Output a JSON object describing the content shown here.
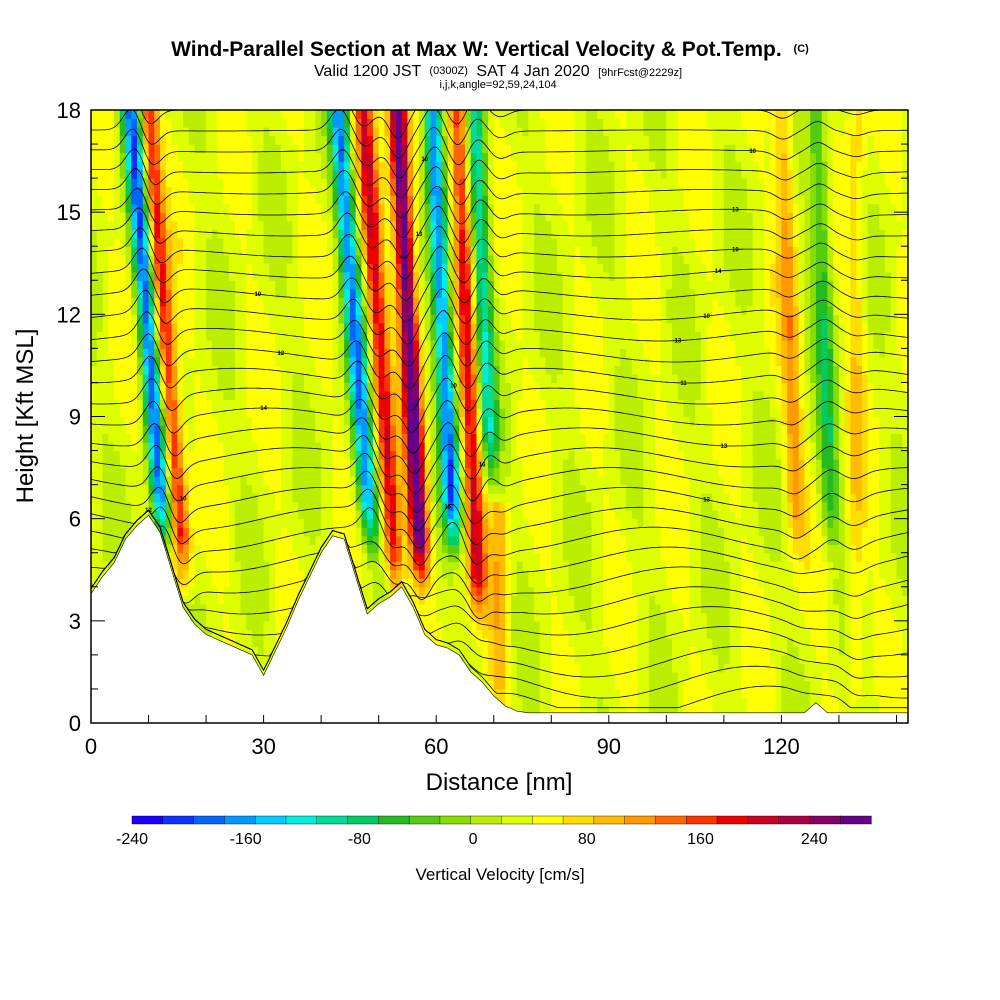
{
  "header": {
    "title_main": "Wind-Parallel Section at Max W: Vertical Velocity & Pot.Temp.",
    "title_mark": "(C)",
    "subtitle_a": "Valid 1200 JST",
    "subtitle_b": "(0300Z)",
    "subtitle_c": "SAT 4 Jan 2020",
    "subtitle_d": "[9hrFcst@2229z]",
    "indices": "i,j,k,angle=92,59,24,104"
  },
  "chart_data": {
    "type": "heatmap",
    "xlabel": "Distance [nm]",
    "ylabel": "Height [Kft MSL]",
    "xlim": [
      0,
      142
    ],
    "ylim": [
      0,
      18
    ],
    "xticks": [
      0,
      30,
      60,
      90,
      120
    ],
    "yticks": [
      0,
      3,
      6,
      9,
      12,
      15,
      18
    ],
    "colorbar": {
      "label": "Vertical Velocity [cm/s]",
      "min": -240,
      "max": 280,
      "step": 20,
      "tick_values": [
        -240,
        -160,
        -80,
        0,
        80,
        160,
        240
      ],
      "colors": [
        "#1a00ff",
        "#0a33ff",
        "#0066ff",
        "#0099ff",
        "#00ccff",
        "#00eedd",
        "#00dd99",
        "#00cc66",
        "#22bb22",
        "#55cc11",
        "#88dd00",
        "#bbee00",
        "#ddff00",
        "#ffff00",
        "#ffdd00",
        "#ffbb00",
        "#ff9900",
        "#ff6600",
        "#ff3300",
        "#ee0000",
        "#cc0022",
        "#aa0044",
        "#880066",
        "#660088"
      ]
    },
    "vertical_velocity_features": [
      {
        "center_x": 11,
        "base_kft": 5,
        "top_kft": 18,
        "tilt_nm_per_kft": -0.45,
        "peak_cms": -200
      },
      {
        "center_x": 14,
        "base_kft": 4,
        "top_kft": 18,
        "tilt_nm_per_kft": -0.45,
        "peak_cms": 140
      },
      {
        "center_x": 47,
        "base_kft": 5,
        "top_kft": 18,
        "tilt_nm_per_kft": -0.45,
        "peak_cms": -180
      },
      {
        "center_x": 51,
        "base_kft": 3.5,
        "top_kft": 18,
        "tilt_nm_per_kft": -0.4,
        "peak_cms": 140
      },
      {
        "center_x": 56,
        "base_kft": 4,
        "top_kft": 18,
        "tilt_nm_per_kft": -0.3,
        "peak_cms": 240
      },
      {
        "center_x": 62,
        "base_kft": 5,
        "top_kft": 18,
        "tilt_nm_per_kft": -0.3,
        "peak_cms": -200
      },
      {
        "center_x": 66,
        "base_kft": 3,
        "top_kft": 18,
        "tilt_nm_per_kft": -0.25,
        "peak_cms": 140
      },
      {
        "center_x": 69,
        "base_kft": 7,
        "top_kft": 18,
        "tilt_nm_per_kft": -0.25,
        "peak_cms": -120
      },
      {
        "center_x": 71,
        "base_kft": 0,
        "top_kft": 6,
        "tilt_nm_per_kft": 0,
        "peak_cms": 60
      },
      {
        "center_x": 122,
        "base_kft": 5,
        "top_kft": 18,
        "tilt_nm_per_kft": -0.2,
        "peak_cms": 70
      },
      {
        "center_x": 128,
        "base_kft": 5,
        "top_kft": 18,
        "tilt_nm_per_kft": -0.2,
        "peak_cms": -80
      },
      {
        "center_x": 133,
        "base_kft": 0,
        "top_kft": 18,
        "tilt_nm_per_kft": 0,
        "peak_cms": 40
      }
    ],
    "theta_contours": {
      "count": 30,
      "labels": [
        "12",
        "10",
        "14",
        "12",
        "10",
        "13",
        "10",
        "15",
        "16",
        "10",
        "13",
        "14",
        "13",
        "10",
        "13",
        "13",
        "11",
        "10",
        "10"
      ]
    },
    "terrain_kft": [
      [
        0,
        3.8
      ],
      [
        2,
        4.3
      ],
      [
        4,
        4.7
      ],
      [
        6,
        5.4
      ],
      [
        8,
        5.8
      ],
      [
        10,
        6.1
      ],
      [
        12,
        5.6
      ],
      [
        14,
        4.5
      ],
      [
        16,
        3.4
      ],
      [
        18,
        2.9
      ],
      [
        20,
        2.6
      ],
      [
        24,
        2.3
      ],
      [
        28,
        2.0
      ],
      [
        30,
        1.4
      ],
      [
        32,
        2.1
      ],
      [
        34,
        2.8
      ],
      [
        36,
        3.6
      ],
      [
        38,
        4.3
      ],
      [
        40,
        5.0
      ],
      [
        42,
        5.5
      ],
      [
        44,
        5.4
      ],
      [
        46,
        4.3
      ],
      [
        48,
        3.2
      ],
      [
        50,
        3.5
      ],
      [
        52,
        3.7
      ],
      [
        54,
        4.0
      ],
      [
        56,
        3.4
      ],
      [
        58,
        2.6
      ],
      [
        60,
        2.3
      ],
      [
        62,
        2.2
      ],
      [
        64,
        2.0
      ],
      [
        66,
        1.5
      ],
      [
        68,
        1.2
      ],
      [
        70,
        0.8
      ],
      [
        72,
        0.5
      ],
      [
        74,
        0.35
      ],
      [
        76,
        0.3
      ],
      [
        110,
        0.3
      ],
      [
        116,
        0.3
      ],
      [
        120,
        0.3
      ],
      [
        124,
        0.3
      ],
      [
        126,
        0.6
      ],
      [
        128,
        0.3
      ],
      [
        132,
        0.3
      ],
      [
        142,
        0.3
      ]
    ]
  }
}
